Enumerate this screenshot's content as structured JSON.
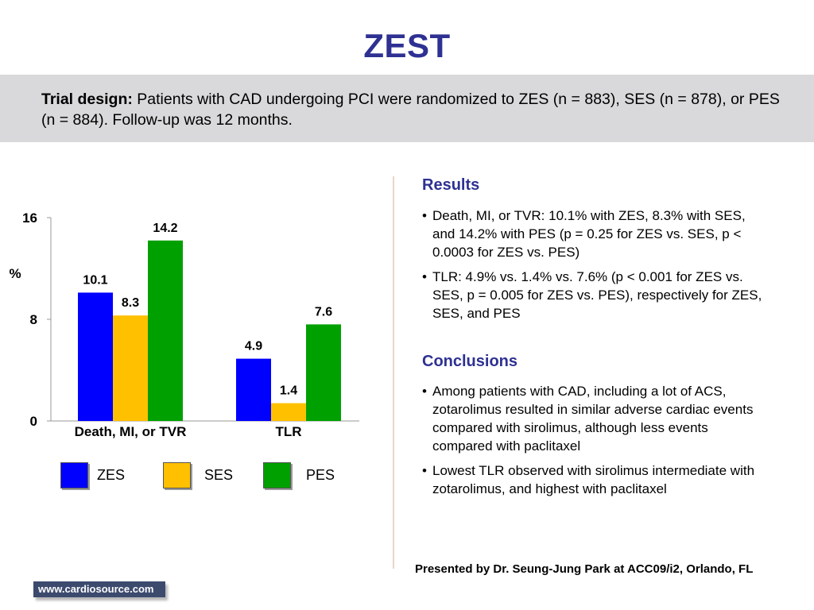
{
  "header": {
    "title": "ZEST"
  },
  "design": {
    "label": "Trial design:",
    "text": "Patients with CAD undergoing PCI were randomized to ZES (n = 883), SES (n = 878), or PES (n = 884). Follow-up was 12 months."
  },
  "chart_data": {
    "type": "bar",
    "categories": [
      "Death, MI, or TVR",
      "TLR"
    ],
    "series": [
      {
        "name": "ZES",
        "values": [
          10.1,
          4.9
        ],
        "color": "#0000ff"
      },
      {
        "name": "SES",
        "values": [
          8.3,
          1.4
        ],
        "color": "#ffc000"
      },
      {
        "name": "PES",
        "values": [
          14.2,
          7.6
        ],
        "color": "#00a000"
      }
    ],
    "ylabel": "%",
    "ylim": [
      0,
      16
    ],
    "yticks": [
      0,
      8,
      16
    ],
    "title": "",
    "xlabel": "",
    "legend": "bottom"
  },
  "results": {
    "heading": "Results",
    "bullets": [
      "Death, MI, or TVR: 10.1% with ZES, 8.3% with SES, and 14.2% with PES (p = 0.25 for ZES vs. SES, p < 0.0003 for ZES vs. PES)",
      "TLR: 4.9% vs. 1.4% vs. 7.6% (p < 0.001 for ZES vs. SES, p = 0.005 for ZES vs. PES), respectively for ZES, SES, and PES"
    ]
  },
  "conclusions": {
    "heading": "Conclusions",
    "bullets": [
      "Among patients with CAD, including a lot of ACS, zotarolimus resulted in similar adverse cardiac events compared with sirolimus, although less events compared with paclitaxel",
      "Lowest TLR observed with sirolimus intermediate with zotarolimus, and highest with paclitaxel"
    ]
  },
  "footer": {
    "presented": "Presented by Dr. Seung-Jung Park at ACC09/i2, Orlando, FL",
    "source": "www.cardiosource.com"
  }
}
